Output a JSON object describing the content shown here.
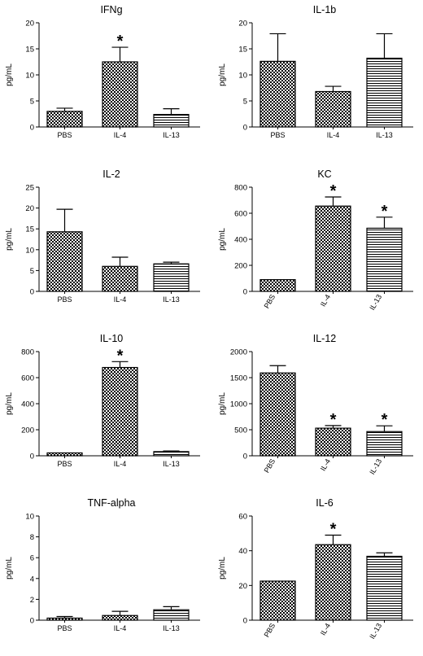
{
  "chart_data": [
    {
      "type": "bar",
      "title": "IFNg",
      "ylabel": "pg/mL",
      "categories": [
        "PBS",
        "IL-4",
        "IL-13"
      ],
      "values": [
        3.0,
        12.5,
        2.4
      ],
      "errors": [
        0.6,
        2.8,
        1.1
      ],
      "significance": [
        "",
        "*",
        ""
      ],
      "ylim": [
        0,
        20
      ],
      "yticks": [
        "0",
        "5",
        "10",
        "15",
        "20"
      ]
    },
    {
      "type": "bar",
      "title": "IL-1b",
      "ylabel": "pg/mL",
      "categories": [
        "PBS",
        "IL-4",
        "IL-13"
      ],
      "values": [
        12.6,
        6.8,
        13.2
      ],
      "errors": [
        5.3,
        1.0,
        4.7
      ],
      "significance": [
        "",
        "",
        ""
      ],
      "ylim": [
        0,
        20
      ],
      "yticks": [
        "0",
        "5",
        "10",
        "15",
        "20"
      ]
    },
    {
      "type": "bar",
      "title": "IL-2",
      "ylabel": "pg/mL",
      "categories": [
        "PBS",
        "IL-4",
        "IL-13"
      ],
      "values": [
        14.3,
        6.0,
        6.6
      ],
      "errors": [
        5.4,
        2.2,
        0.4
      ],
      "significance": [
        "",
        "",
        ""
      ],
      "ylim": [
        0,
        25
      ],
      "yticks": [
        "0",
        "5",
        "10",
        "15",
        "20",
        "25"
      ]
    },
    {
      "type": "bar",
      "title": "KC",
      "ylabel": "pg/mL",
      "categories": [
        "PBS",
        "IL-4",
        "IL-13"
      ],
      "values": [
        90,
        655,
        485
      ],
      "errors": [
        0,
        70,
        85
      ],
      "significance": [
        "",
        "*",
        "*"
      ],
      "ylim": [
        0,
        800
      ],
      "yticks": [
        "0",
        "200",
        "400",
        "600",
        "800"
      ]
    },
    {
      "type": "bar",
      "title": "IL-10",
      "ylabel": "pg/mL",
      "categories": [
        "PBS",
        "IL-4",
        "IL-13"
      ],
      "values": [
        22,
        678,
        32
      ],
      "errors": [
        0,
        45,
        5
      ],
      "significance": [
        "",
        "*",
        ""
      ],
      "ylim": [
        0,
        800
      ],
      "yticks": [
        "0",
        "200",
        "400",
        "600",
        "800"
      ]
    },
    {
      "type": "bar",
      "title": "IL-12",
      "ylabel": "pg/mL",
      "categories": [
        "PBS",
        "IL-4",
        "IL-13"
      ],
      "values": [
        1590,
        530,
        465
      ],
      "errors": [
        140,
        50,
        110
      ],
      "significance": [
        "",
        "*",
        "*"
      ],
      "ylim": [
        0,
        2000
      ],
      "yticks": [
        "0",
        "500",
        "1000",
        "1500",
        "2000"
      ]
    },
    {
      "type": "bar",
      "title": "TNF-alpha",
      "ylabel": "pg/mL",
      "categories": [
        "PBS",
        "IL-4",
        "IL-13"
      ],
      "values": [
        0.2,
        0.45,
        1.0
      ],
      "errors": [
        0.15,
        0.4,
        0.3
      ],
      "significance": [
        "",
        "",
        ""
      ],
      "ylim": [
        0,
        10
      ],
      "yticks": [
        "0",
        "2",
        "4",
        "6",
        "8",
        "10"
      ]
    },
    {
      "type": "bar",
      "title": "IL-6",
      "ylabel": "pg/mL",
      "categories": [
        "PBS",
        "IL-4",
        "IL-13"
      ],
      "values": [
        22.5,
        43.5,
        36.8
      ],
      "errors": [
        0,
        5.5,
        2.0
      ],
      "significance": [
        "",
        "*",
        ""
      ],
      "ylim": [
        0,
        60
      ],
      "yticks": [
        "0",
        "20",
        "40",
        "60"
      ]
    }
  ]
}
